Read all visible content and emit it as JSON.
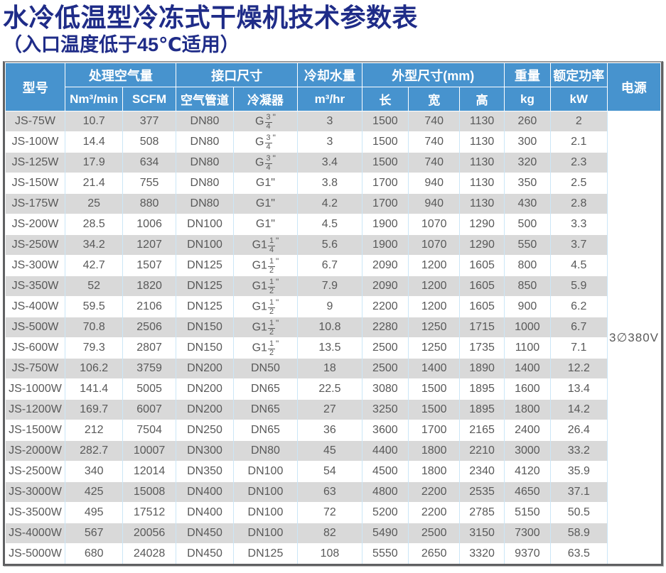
{
  "page": {
    "title": "水冷低温型冷冻式干燥机技术参数表",
    "subtitle": "（入口温度低于45℃适用）"
  },
  "table": {
    "header": {
      "model": "型号",
      "air_volume_group": "处理空气量",
      "air_volume_unit_nm3": "Nm³/min",
      "air_volume_unit_scfm": "SCFM",
      "interface_group": "接口尺寸",
      "interface_air_pipe": "空气管道",
      "interface_condenser": "冷凝器",
      "cooling_water_group": "冷却水量",
      "cooling_water_unit": "m³/hr",
      "dimensions_group": "外型尺寸(mm)",
      "dim_length": "长",
      "dim_width": "宽",
      "dim_height": "高",
      "weight_group": "重量",
      "weight_unit": "kg",
      "rated_power_group": "额定功率",
      "rated_power_unit": "kW",
      "power_supply": "电源"
    },
    "power_supply_value": "3∅380V",
    "rows": [
      [
        "JS-75W",
        "10.7",
        "377",
        "DN80",
        "G 3/4\"",
        "3",
        "1500",
        "740",
        "1130",
        "260",
        "2"
      ],
      [
        "JS-100W",
        "14.4",
        "508",
        "DN80",
        "G 3/4\"",
        "3",
        "1500",
        "740",
        "1130",
        "300",
        "2.1"
      ],
      [
        "JS-125W",
        "17.9",
        "634",
        "DN80",
        "G 3/4\"",
        "3.4",
        "1500",
        "740",
        "1130",
        "320",
        "2.3"
      ],
      [
        "JS-150W",
        "21.4",
        "755",
        "DN80",
        "G1\"",
        "3.8",
        "1700",
        "940",
        "1130",
        "350",
        "2.5"
      ],
      [
        "JS-175W",
        "25",
        "880",
        "DN80",
        "G1\"",
        "4.2",
        "1700",
        "940",
        "1130",
        "430",
        "2.8"
      ],
      [
        "JS-200W",
        "28.5",
        "1006",
        "DN100",
        "G1\"",
        "4.5",
        "1900",
        "1070",
        "1290",
        "500",
        "3.3"
      ],
      [
        "JS-250W",
        "34.2",
        "1207",
        "DN100",
        "G1 1/4\"",
        "5.6",
        "1900",
        "1070",
        "1290",
        "550",
        "3.7"
      ],
      [
        "JS-300W",
        "42.7",
        "1507",
        "DN125",
        "G1 1/2\"",
        "6.7",
        "2090",
        "1200",
        "1605",
        "800",
        "4.5"
      ],
      [
        "JS-350W",
        "52",
        "1820",
        "DN125",
        "G1 1/2\"",
        "7.9",
        "2090",
        "1200",
        "1605",
        "850",
        "5.9"
      ],
      [
        "JS-400W",
        "59.5",
        "2106",
        "DN125",
        "G1 1/2\"",
        "9",
        "2200",
        "1200",
        "1605",
        "900",
        "6.2"
      ],
      [
        "JS-500W",
        "70.8",
        "2506",
        "DN150",
        "G1 1/2\"",
        "10.8",
        "2280",
        "1250",
        "1715",
        "1000",
        "6.7"
      ],
      [
        "JS-600W",
        "79.3",
        "2807",
        "DN150",
        "G1 1/2\"",
        "13.5",
        "2500",
        "1250",
        "1735",
        "1100",
        "7.1"
      ],
      [
        "JS-750W",
        "106.2",
        "3759",
        "DN200",
        "DN50",
        "18",
        "2500",
        "1400",
        "1890",
        "1400",
        "12.2"
      ],
      [
        "JS-1000W",
        "141.4",
        "5005",
        "DN200",
        "DN65",
        "22.5",
        "3080",
        "1500",
        "1895",
        "1600",
        "13.4"
      ],
      [
        "JS-1200W",
        "169.7",
        "6007",
        "DN200",
        "DN65",
        "27",
        "3250",
        "1500",
        "1895",
        "1800",
        "14.2"
      ],
      [
        "JS-1500W",
        "212",
        "7504",
        "DN250",
        "DN65",
        "36",
        "3600",
        "1700",
        "2165",
        "2400",
        "26.4"
      ],
      [
        "JS-2000W",
        "282.7",
        "10007",
        "DN300",
        "DN80",
        "45",
        "4400",
        "1800",
        "2210",
        "3000",
        "33.2"
      ],
      [
        "JS-2500W",
        "340",
        "12014",
        "DN350",
        "DN100",
        "54",
        "4500",
        "1800",
        "2340",
        "4120",
        "35.9"
      ],
      [
        "JS-3000W",
        "425",
        "15008",
        "DN400",
        "DN100",
        "63",
        "4800",
        "2200",
        "2535",
        "4650",
        "37.1"
      ],
      [
        "JS-3500W",
        "495",
        "17512",
        "DN400",
        "DN100",
        "72",
        "5200",
        "2200",
        "2785",
        "5150",
        "50.5"
      ],
      [
        "JS-4000W",
        "567",
        "20056",
        "DN450",
        "DN100",
        "82",
        "5490",
        "2500",
        "3150",
        "7300",
        "58.9"
      ],
      [
        "JS-5000W",
        "680",
        "24028",
        "DN450",
        "DN125",
        "108",
        "5550",
        "2650",
        "3320",
        "9370",
        "63.5"
      ]
    ]
  },
  "colors": {
    "title": "#1f2c88",
    "header_bg": "#4793ce",
    "row_alt": "#d9d9d9",
    "grid_line": "#cbe6f7",
    "body_text": "#595959",
    "outer_border": "#5f6062"
  }
}
